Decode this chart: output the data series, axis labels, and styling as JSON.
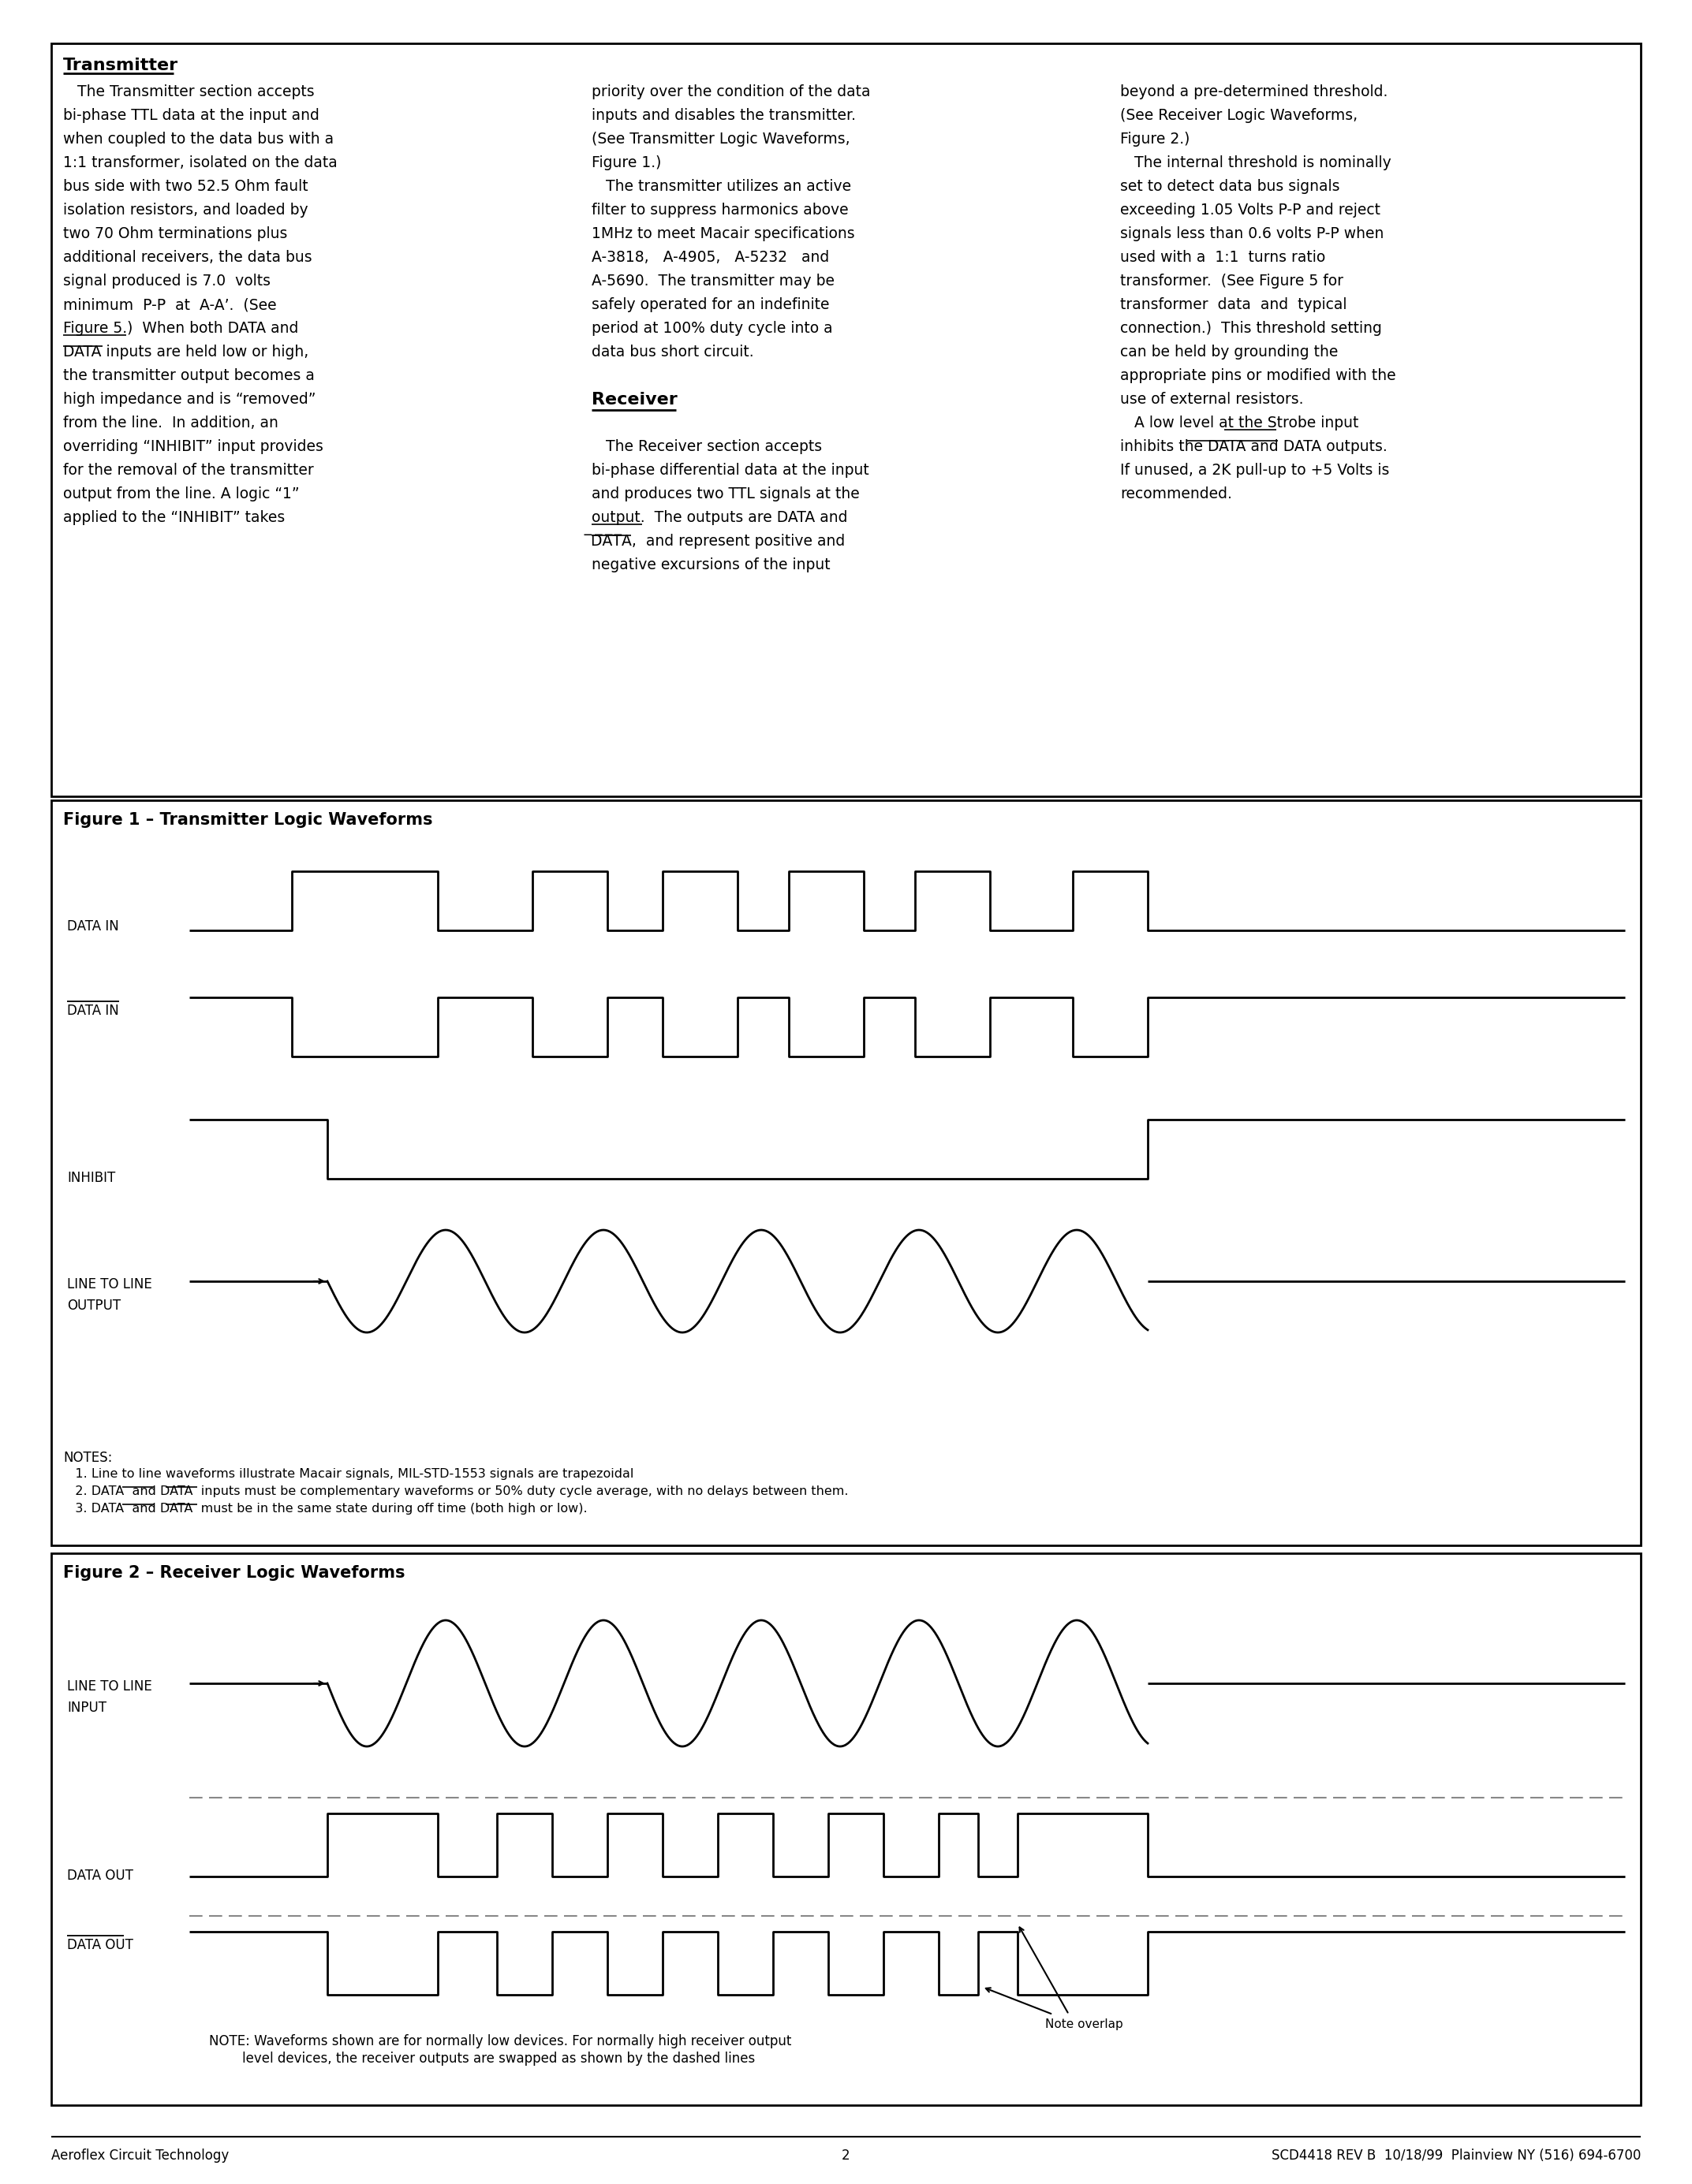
{
  "page_bg": "#ffffff",
  "fig1_title": "Figure 1 – Transmitter Logic Waveforms",
  "fig2_title": "Figure 2 – Receiver Logic Waveforms",
  "footer_left": "Aeroflex Circuit Technology",
  "footer_center": "2",
  "footer_right": "SCD4418 REV B  10/18/99  Plainview NY (516) 694-6700"
}
